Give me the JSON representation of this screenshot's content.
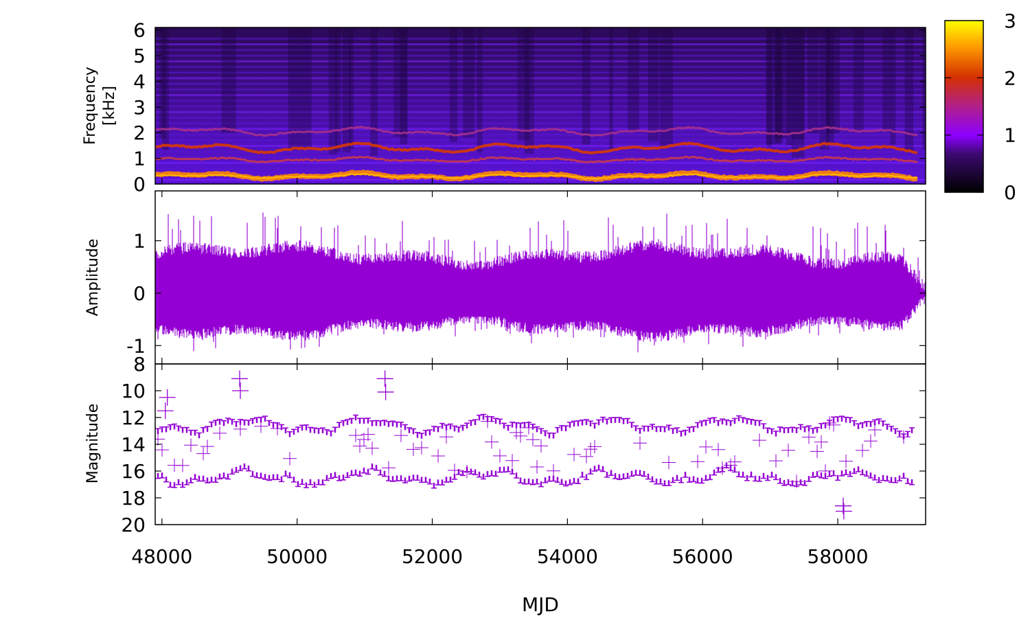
{
  "chart_data": [
    {
      "type": "heatmap",
      "panel": "spectrogram",
      "ylabel_lines": [
        "Frequency",
        "[kHz]"
      ],
      "y_ticks": [
        "0",
        "1",
        "2",
        "3",
        "4",
        "5",
        "6"
      ],
      "ylim": [
        0,
        6.1
      ],
      "xlim": [
        47900,
        59300
      ],
      "colorbar": {
        "ticks": [
          "0",
          "1",
          "2",
          "3"
        ],
        "range": [
          0,
          3
        ],
        "colormap": [
          "#000000",
          "#8c00ff",
          "#d43000",
          "#ffa500",
          "#ffff00"
        ]
      },
      "description_bands_khz": [
        0.3,
        1.4,
        2.0
      ]
    },
    {
      "type": "line",
      "panel": "waveform",
      "ylabel": "Amplitude",
      "y_ticks": [
        "-1",
        "0",
        "1"
      ],
      "ylim": [
        -1.35,
        1.95
      ],
      "xlim": [
        47900,
        59300
      ],
      "color": "#9400d3"
    },
    {
      "type": "scatter",
      "panel": "lightcurve",
      "ylabel": "Magnitude",
      "y_ticks": [
        "8",
        "10",
        "12",
        "14",
        "16",
        "18",
        "20"
      ],
      "ylim": [
        20,
        8
      ],
      "xlim": [
        47900,
        59300
      ],
      "color": "#9400d3",
      "outliers": [
        {
          "x": 49150,
          "y": 9.1
        },
        {
          "x": 49160,
          "y": 10.0
        },
        {
          "x": 51300,
          "y": 9.1
        },
        {
          "x": 51310,
          "y": 10.1
        },
        {
          "x": 48050,
          "y": 11.5
        },
        {
          "x": 48080,
          "y": 10.5
        },
        {
          "x": 58080,
          "y": 18.6
        },
        {
          "x": 58090,
          "y": 19.0
        }
      ]
    }
  ],
  "xaxis": {
    "label": "MJD",
    "ticks": [
      "48000",
      "50000",
      "52000",
      "54000",
      "56000",
      "58000"
    ],
    "tick_values": [
      48000,
      50000,
      52000,
      54000,
      56000,
      58000
    ]
  }
}
